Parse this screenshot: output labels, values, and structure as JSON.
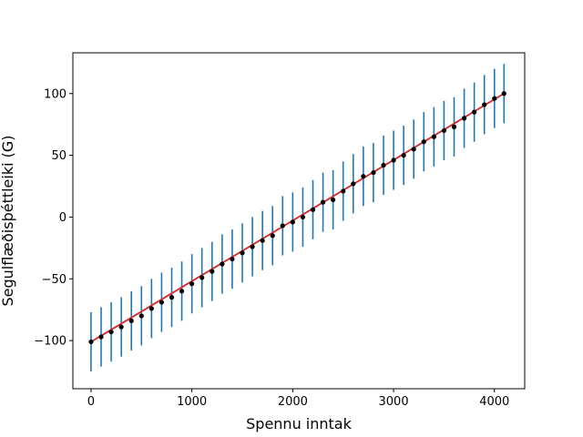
{
  "chart_data": {
    "type": "scatter",
    "title": "",
    "xlabel": "Spennu inntak",
    "ylabel": "Segulflæðisþéttleiki (G)",
    "xlim": [
      -180,
      4300
    ],
    "ylim": [
      -139,
      133
    ],
    "xticks": [
      0,
      1000,
      2000,
      3000,
      4000
    ],
    "yticks": [
      -100,
      -50,
      0,
      50,
      100
    ],
    "ytick_labels": [
      "−100",
      "−50",
      "0",
      "50",
      "100"
    ],
    "grid": false,
    "legend": "none",
    "series": [
      {
        "kind": "errorbar-points",
        "x": [
          0,
          100,
          200,
          300,
          400,
          500,
          600,
          700,
          800,
          900,
          1000,
          1100,
          1200,
          1300,
          1400,
          1500,
          1600,
          1700,
          1800,
          1900,
          2000,
          2100,
          2200,
          2300,
          2400,
          2500,
          2600,
          2700,
          2800,
          2900,
          3000,
          3100,
          3200,
          3300,
          3400,
          3500,
          3600,
          3700,
          3800,
          3900,
          4000,
          4095
        ],
        "y": [
          -101,
          -97,
          -93,
          -89,
          -84,
          -80,
          -74,
          -69,
          -65,
          -60,
          -54,
          -49,
          -44,
          -38,
          -34,
          -29,
          -24,
          -19,
          -15,
          -7,
          -4,
          0,
          6,
          12,
          14,
          21,
          27,
          33,
          36,
          42,
          46,
          50,
          55,
          61,
          65,
          70,
          73,
          80,
          85,
          91,
          96,
          100
        ],
        "yerr": 24,
        "color": "#000000",
        "errcolor": "#1f77b4"
      },
      {
        "kind": "fit-line",
        "x": [
          0,
          4095
        ],
        "y": [
          -101,
          100
        ],
        "color": "#d62728"
      }
    ]
  }
}
